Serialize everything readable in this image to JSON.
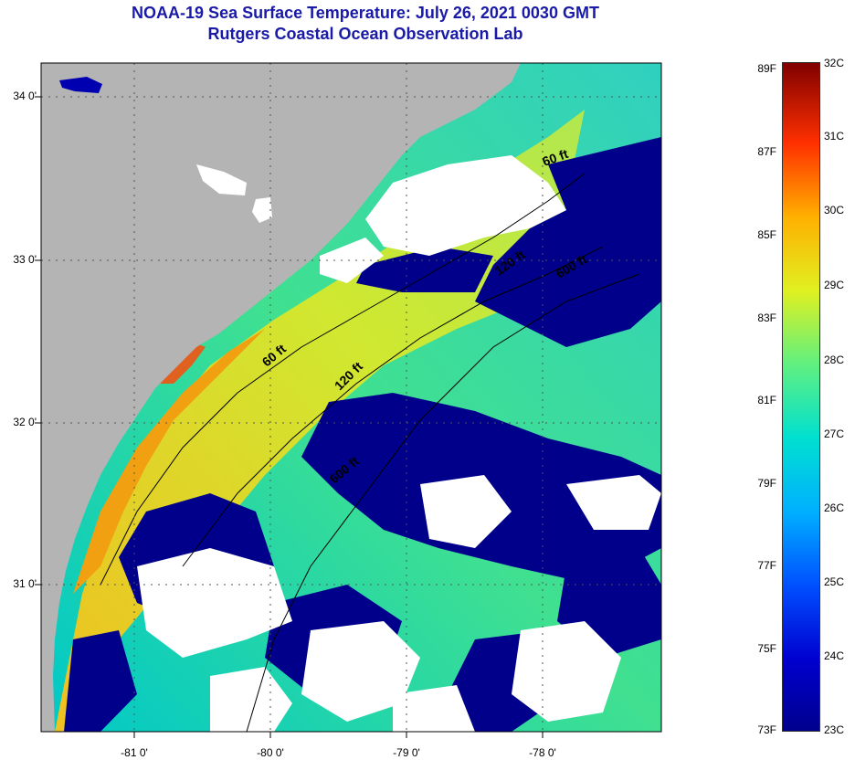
{
  "title": {
    "line1": "NOAA-19 Sea Surface Temperature:  July 26, 2021 0030 GMT",
    "line2": "Rutgers Coastal Ocean Observation Lab"
  },
  "colors": {
    "land": "#b4b4b4",
    "cloud": "#ffffff",
    "title": "#1a1aa8",
    "cold": "#00008b",
    "warm": "#ff8c00"
  },
  "axes": {
    "longitude_labels": [
      "-81 0'",
      "-80 0'",
      "-79 0'",
      "-78 0'"
    ],
    "latitude_labels": [
      "34 0'",
      "33 0'",
      "32 0'",
      "31 0'"
    ]
  },
  "isobaths": {
    "labels": [
      "60 ft",
      "120 ft",
      "600 ft",
      "60 ft",
      "120 ft",
      "600 ft"
    ]
  },
  "colorbar": {
    "fahrenheit_labels": [
      "89F",
      "87F",
      "85F",
      "83F",
      "81F",
      "79F",
      "77F",
      "75F",
      "73F"
    ],
    "celsius_labels": [
      "32C",
      "31C",
      "30C",
      "29C",
      "28C",
      "27C",
      "26C",
      "25C",
      "24C",
      "23C"
    ],
    "range_c": [
      23,
      32
    ]
  }
}
